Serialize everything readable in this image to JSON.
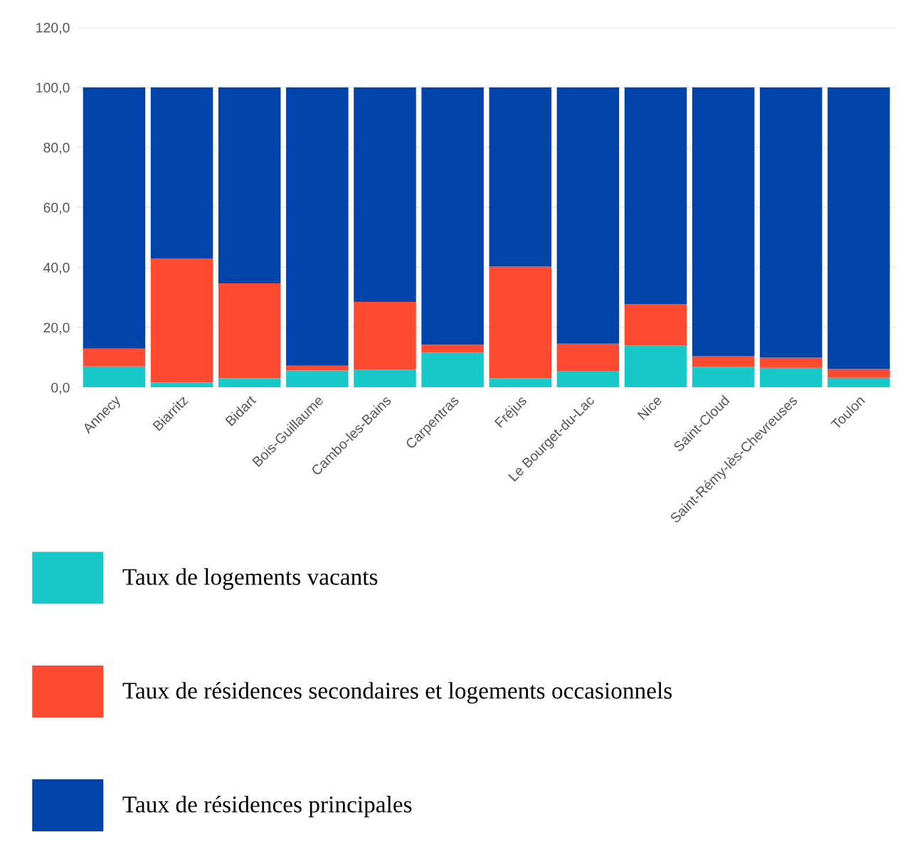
{
  "chart_data": {
    "type": "bar",
    "stacked": true,
    "categories": [
      "Annecy",
      "Biarritz",
      "Bidart",
      "Bois-Guillaume",
      "Cambo-les-Bains",
      "Carpentras",
      "Fréjus",
      "Le Bourget-du-Lac",
      "Nice",
      "Saint-Cloud",
      "Saint-Rémy-lès-Chevreuses",
      "Toulon"
    ],
    "series": [
      {
        "name": "Taux de logements vacants",
        "color": "#17c9c9",
        "values": [
          7.0,
          1.6,
          3.0,
          5.6,
          5.9,
          11.6,
          3.0,
          5.3,
          14.0,
          6.8,
          6.5,
          3.2
        ]
      },
      {
        "name": "Taux de résidences secondaires et logements occasionnels",
        "color": "#ff4a32",
        "values": [
          5.9,
          41.4,
          31.7,
          1.6,
          22.6,
          2.6,
          37.3,
          9.3,
          13.7,
          3.6,
          3.4,
          2.9
        ]
      },
      {
        "name": "Taux de résidences principales",
        "color": "#0044a9",
        "values": [
          87.1,
          57.0,
          65.3,
          92.8,
          71.5,
          85.8,
          59.7,
          85.4,
          72.3,
          89.6,
          90.1,
          93.9
        ]
      }
    ],
    "ylim": [
      0,
      120
    ],
    "yticks": [
      {
        "value": 0,
        "label": "0,0"
      },
      {
        "value": 20,
        "label": "20,0"
      },
      {
        "value": 40,
        "label": "40,0"
      },
      {
        "value": 60,
        "label": "60,0"
      },
      {
        "value": 80,
        "label": "80,0"
      },
      {
        "value": 100,
        "label": "100,0"
      },
      {
        "value": 120,
        "label": "120,0"
      }
    ],
    "grid": "y",
    "legend": "bottom"
  }
}
